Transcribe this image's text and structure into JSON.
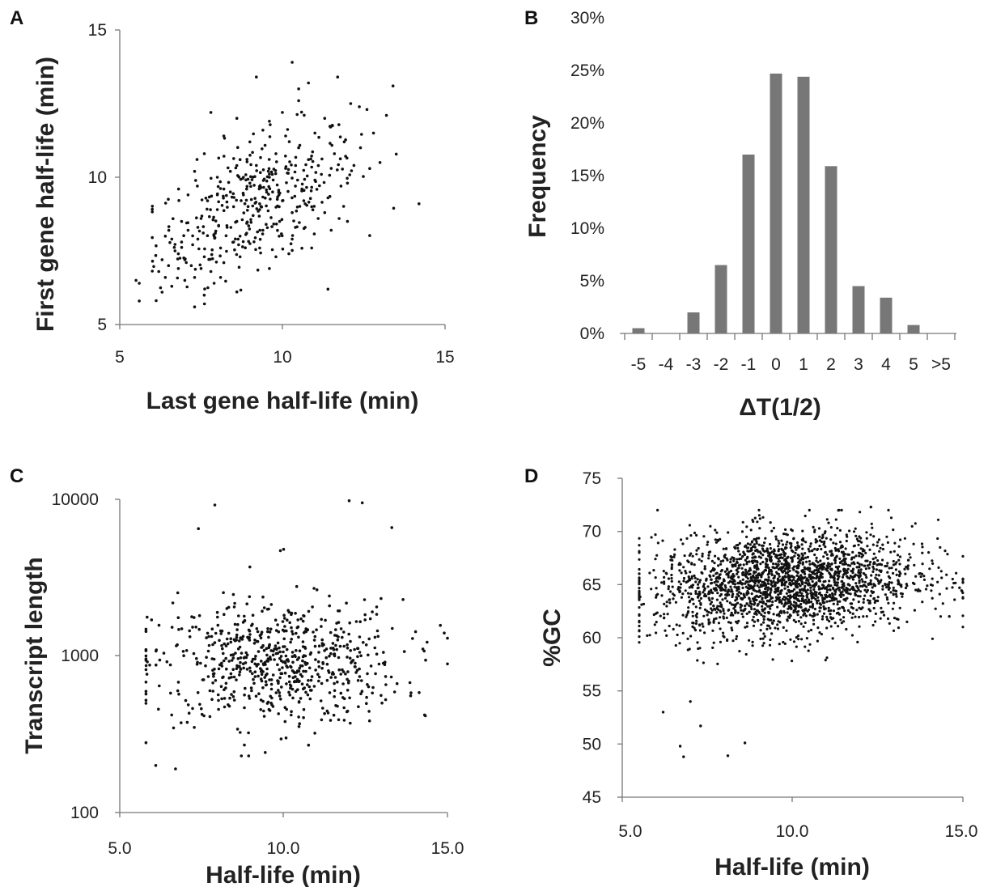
{
  "chart_data": [
    {
      "panel": "A",
      "type": "scatter",
      "xlabel": "Last gene half-life (min)",
      "ylabel": "First gene half-life (min)",
      "xlim": [
        5,
        15
      ],
      "ylim": [
        5,
        15
      ],
      "xticks": [
        "5",
        "10",
        "15"
      ],
      "yticks": [
        "5",
        "10",
        "15"
      ],
      "points": [
        [
          5.5,
          6.5
        ],
        [
          5.6,
          6.4
        ],
        [
          5.6,
          5.8
        ],
        [
          6.2,
          6.8
        ],
        [
          6.3,
          7.2
        ],
        [
          6.3,
          6.1
        ],
        [
          6.4,
          6.6
        ],
        [
          6.5,
          7.0
        ],
        [
          6.6,
          6.3
        ],
        [
          6.7,
          7.5
        ],
        [
          6.8,
          6.9
        ],
        [
          6.9,
          7.8
        ],
        [
          7.0,
          7.2
        ],
        [
          7.0,
          6.5
        ],
        [
          7.1,
          8.2
        ],
        [
          7.2,
          7.0
        ],
        [
          7.3,
          6.6
        ],
        [
          7.3,
          5.6
        ],
        [
          7.4,
          7.9
        ],
        [
          7.5,
          8.6
        ],
        [
          7.6,
          7.3
        ],
        [
          7.7,
          9.2
        ],
        [
          7.8,
          6.8
        ],
        [
          7.9,
          8.0
        ],
        [
          7.9,
          6.4
        ],
        [
          8.0,
          8.9
        ],
        [
          8.1,
          7.6
        ],
        [
          8.2,
          9.6
        ],
        [
          8.2,
          7.1
        ],
        [
          8.3,
          8.3
        ],
        [
          8.4,
          10.2
        ],
        [
          8.5,
          7.8
        ],
        [
          8.5,
          9.0
        ],
        [
          8.6,
          8.5
        ],
        [
          8.7,
          10.6
        ],
        [
          8.7,
          7.3
        ],
        [
          8.8,
          9.4
        ],
        [
          8.8,
          10.0
        ],
        [
          8.9,
          8.1
        ],
        [
          9.0,
          9.8
        ],
        [
          9.0,
          11.2
        ],
        [
          9.1,
          8.7
        ],
        [
          9.2,
          10.4
        ],
        [
          9.3,
          7.6
        ],
        [
          9.3,
          9.1
        ],
        [
          9.4,
          11.6
        ],
        [
          9.5,
          8.4
        ],
        [
          9.6,
          10.0
        ],
        [
          9.6,
          6.9
        ],
        [
          9.7,
          9.5
        ],
        [
          9.8,
          10.8
        ],
        [
          9.9,
          8.0
        ],
        [
          10.0,
          9.2
        ],
        [
          10.0,
          12.2
        ],
        [
          10.1,
          10.3
        ],
        [
          10.2,
          7.4
        ],
        [
          10.3,
          8.8
        ],
        [
          10.3,
          13.9
        ],
        [
          10.4,
          9.7
        ],
        [
          10.5,
          11.0
        ],
        [
          10.5,
          12.6
        ],
        [
          10.6,
          9.6
        ],
        [
          10.7,
          8.3
        ],
        [
          10.8,
          10.6
        ],
        [
          10.8,
          13.2
        ],
        [
          10.9,
          9.0
        ],
        [
          11.0,
          11.5
        ],
        [
          11.1,
          8.6
        ],
        [
          11.2,
          10.1
        ],
        [
          11.3,
          12.0
        ],
        [
          11.4,
          9.3
        ],
        [
          11.4,
          6.2
        ],
        [
          11.5,
          8.2
        ],
        [
          11.6,
          10.8
        ],
        [
          11.7,
          13.4
        ],
        [
          11.8,
          9.7
        ],
        [
          11.9,
          11.2
        ],
        [
          12.0,
          8.5
        ],
        [
          12.1,
          12.5
        ],
        [
          12.2,
          10.4
        ],
        [
          12.4,
          11.0
        ],
        [
          12.6,
          12.3
        ],
        [
          12.8,
          11.5
        ],
        [
          13.0,
          10.5
        ],
        [
          13.2,
          12.1
        ],
        [
          13.4,
          13.1
        ],
        [
          14.2,
          9.1
        ],
        [
          7.4,
          8.3
        ],
        [
          7.6,
          10.8
        ],
        [
          7.8,
          12.2
        ],
        [
          8.2,
          11.4
        ],
        [
          8.6,
          12.0
        ],
        [
          9.2,
          13.4
        ],
        [
          9.6,
          11.9
        ],
        [
          10.1,
          11.4
        ],
        [
          10.5,
          13.0
        ],
        [
          6.6,
          7.9
        ],
        [
          6.9,
          8.5
        ],
        [
          7.1,
          9.4
        ],
        [
          7.3,
          10.2
        ],
        [
          8.0,
          10.0
        ],
        [
          8.4,
          9.5
        ],
        [
          8.9,
          9.6
        ],
        [
          9.4,
          8.2
        ],
        [
          9.9,
          9.0
        ],
        [
          10.3,
          7.9
        ],
        [
          10.7,
          9.1
        ],
        [
          11.0,
          9.9
        ],
        [
          11.5,
          10.3
        ],
        [
          12.0,
          9.8
        ],
        [
          6.4,
          8.0
        ],
        [
          6.8,
          7.4
        ],
        [
          7.5,
          6.9
        ],
        [
          8.1,
          6.6
        ],
        [
          8.7,
          8.0
        ],
        [
          9.3,
          8.9
        ],
        [
          9.8,
          7.3
        ],
        [
          10.4,
          8.3
        ],
        [
          10.9,
          7.6
        ],
        [
          11.3,
          8.8
        ]
      ]
    },
    {
      "panel": "B",
      "type": "bar",
      "xlabel": "ΔT(1/2)",
      "ylabel": "Frequency",
      "categories": [
        "-5",
        "-4",
        "-3",
        "-2",
        "-1",
        "0",
        "1",
        "2",
        "3",
        "4",
        "5",
        ">5"
      ],
      "values": [
        0.5,
        0.0,
        2.0,
        6.5,
        17.0,
        24.7,
        24.4,
        15.9,
        4.5,
        3.4,
        0.8,
        0.0
      ],
      "ylim": [
        0,
        30
      ],
      "yticks": [
        "0%",
        "5%",
        "10%",
        "15%",
        "20%",
        "25%",
        "30%"
      ]
    },
    {
      "panel": "C",
      "type": "scatter",
      "xlabel": "Half-life (min)",
      "ylabel": "Transcript length",
      "yscale": "log",
      "xlim": [
        5,
        15
      ],
      "ylim": [
        100,
        10000
      ],
      "xticks": [
        "5.0",
        "10.0",
        "15.0"
      ],
      "yticks": [
        "100",
        "1000",
        "10000"
      ],
      "n_points": 700,
      "x_range": [
        5.8,
        15.0
      ],
      "center": [
        9.8,
        900
      ],
      "outliers": [
        [
          7.9,
          9200
        ],
        [
          12.0,
          9800
        ],
        [
          12.4,
          9500
        ],
        [
          7.4,
          6500
        ],
        [
          13.3,
          6600
        ],
        [
          10.0,
          4800
        ],
        [
          9.9,
          4700
        ],
        [
          6.7,
          190
        ],
        [
          6.1,
          200
        ],
        [
          14.3,
          420
        ],
        [
          15.0,
          890
        ],
        [
          14.9,
          1400
        ]
      ]
    },
    {
      "panel": "D",
      "type": "scatter",
      "xlabel": "Half-life (min)",
      "ylabel": "%GC",
      "xlim": [
        5,
        15
      ],
      "ylim": [
        45,
        75
      ],
      "xticks": [
        "5.0",
        "10.0",
        "15.0"
      ],
      "yticks": [
        "45",
        "50",
        "55",
        "60",
        "65",
        "70",
        "75"
      ],
      "n_points": 2200,
      "x_range": [
        5.5,
        15.0
      ],
      "center": [
        9.8,
        65
      ],
      "outliers": [
        [
          6.7,
          49.8
        ],
        [
          6.8,
          48.8
        ],
        [
          8.1,
          48.9
        ],
        [
          8.6,
          50.1
        ],
        [
          7.3,
          51.7
        ],
        [
          7.0,
          54.0
        ],
        [
          6.2,
          53.0
        ],
        [
          12.3,
          72.3
        ],
        [
          14.9,
          64.7
        ],
        [
          14.6,
          62.0
        ]
      ]
    }
  ],
  "panel_labels": {
    "a": "A",
    "b": "B",
    "c": "C",
    "d": "D"
  }
}
